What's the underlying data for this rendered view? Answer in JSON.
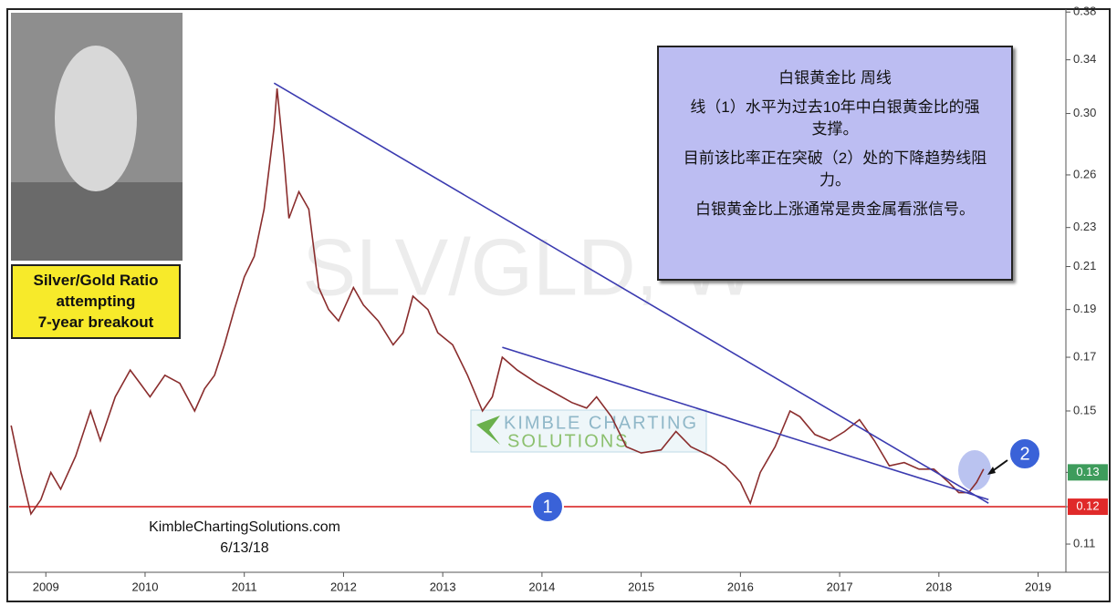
{
  "chart_data": {
    "type": "line",
    "watermark": "SLV/GLD, W",
    "note": {
      "title": "白银黄金比  周线",
      "lines": [
        "线（1）水平为过去10年中白银黄金比的强支撑。",
        "目前该比率正在突破（2）处的下降趋势线阻力。",
        "白银黄金比上涨通常是贵金属看涨信号。"
      ]
    },
    "badge": [
      "Silver/Gold Ratio",
      "attempting",
      "7-year breakout"
    ],
    "logo": [
      "KIMBLE CHARTING",
      "SOLUTIONS"
    ],
    "source": "KimbleChartingSolutions.com",
    "date": "6/13/18",
    "markers": [
      "1",
      "2"
    ],
    "log_scale": true,
    "xlim": [
      2008.63,
      2019.28
    ],
    "xticks": [
      2009,
      2010,
      2011,
      2012,
      2013,
      2014,
      2015,
      2016,
      2017,
      2018,
      2019
    ],
    "ylim": [
      0.103,
      0.381
    ],
    "yticks": [
      0.11,
      0.12,
      0.13,
      0.15,
      0.17,
      0.19,
      0.21,
      0.23,
      0.26,
      {
        "value": 0.3,
        "label": "0.30"
      },
      0.34,
      0.38
    ],
    "series": [
      {
        "color": "#8a2d2d",
        "x": [
          2008.65,
          2008.75,
          2008.85,
          2008.95,
          2009.05,
          2009.15,
          2009.3,
          2009.45,
          2009.55,
          2009.7,
          2009.85,
          2009.95,
          2010.05,
          2010.2,
          2010.35,
          2010.5,
          2010.6,
          2010.7,
          2010.8,
          2010.9,
          2011.0,
          2011.1,
          2011.2,
          2011.3,
          2011.33,
          2011.4,
          2011.45,
          2011.55,
          2011.65,
          2011.75,
          2011.85,
          2011.95,
          2012.1,
          2012.2,
          2012.35,
          2012.5,
          2012.6,
          2012.7,
          2012.85,
          2012.95,
          2013.1,
          2013.25,
          2013.4,
          2013.5,
          2013.6,
          2013.75,
          2013.95,
          2014.1,
          2014.3,
          2014.45,
          2014.55,
          2014.7,
          2014.85,
          2015.0,
          2015.2,
          2015.35,
          2015.5,
          2015.7,
          2015.85,
          2016.0,
          2016.1,
          2016.2,
          2016.35,
          2016.5,
          2016.6,
          2016.75,
          2016.9,
          2017.05,
          2017.2,
          2017.35,
          2017.5,
          2017.65,
          2017.8,
          2017.95,
          2018.1,
          2018.2,
          2018.3,
          2018.38,
          2018.45
        ],
        "values": [
          0.145,
          0.13,
          0.118,
          0.122,
          0.13,
          0.125,
          0.135,
          0.15,
          0.14,
          0.155,
          0.165,
          0.16,
          0.155,
          0.163,
          0.16,
          0.15,
          0.158,
          0.163,
          0.175,
          0.19,
          0.205,
          0.215,
          0.24,
          0.29,
          0.318,
          0.27,
          0.235,
          0.25,
          0.24,
          0.2,
          0.19,
          0.185,
          0.2,
          0.192,
          0.185,
          0.175,
          0.18,
          0.196,
          0.19,
          0.18,
          0.175,
          0.163,
          0.15,
          0.155,
          0.17,
          0.165,
          0.16,
          0.157,
          0.153,
          0.151,
          0.155,
          0.148,
          0.138,
          0.136,
          0.137,
          0.143,
          0.138,
          0.135,
          0.132,
          0.127,
          0.121,
          0.13,
          0.138,
          0.15,
          0.148,
          0.142,
          0.14,
          0.143,
          0.147,
          0.14,
          0.132,
          0.133,
          0.131,
          0.131,
          0.127,
          0.124,
          0.124,
          0.127,
          0.131
        ]
      }
    ],
    "trendlines": [
      {
        "color": "#3b3bb0",
        "x": [
          2011.3,
          2018.5
        ],
        "y": [
          0.322,
          0.121
        ]
      },
      {
        "color": "#3b3bb0",
        "x": [
          2013.6,
          2018.5
        ],
        "y": [
          0.174,
          0.122
        ]
      }
    ],
    "support": {
      "value": 0.12,
      "color": "#e05050"
    },
    "price_tags": [
      {
        "value": 0.13,
        "color": "#3e9c5c"
      },
      {
        "value": 0.12,
        "color": "#e02a2a"
      }
    ]
  }
}
